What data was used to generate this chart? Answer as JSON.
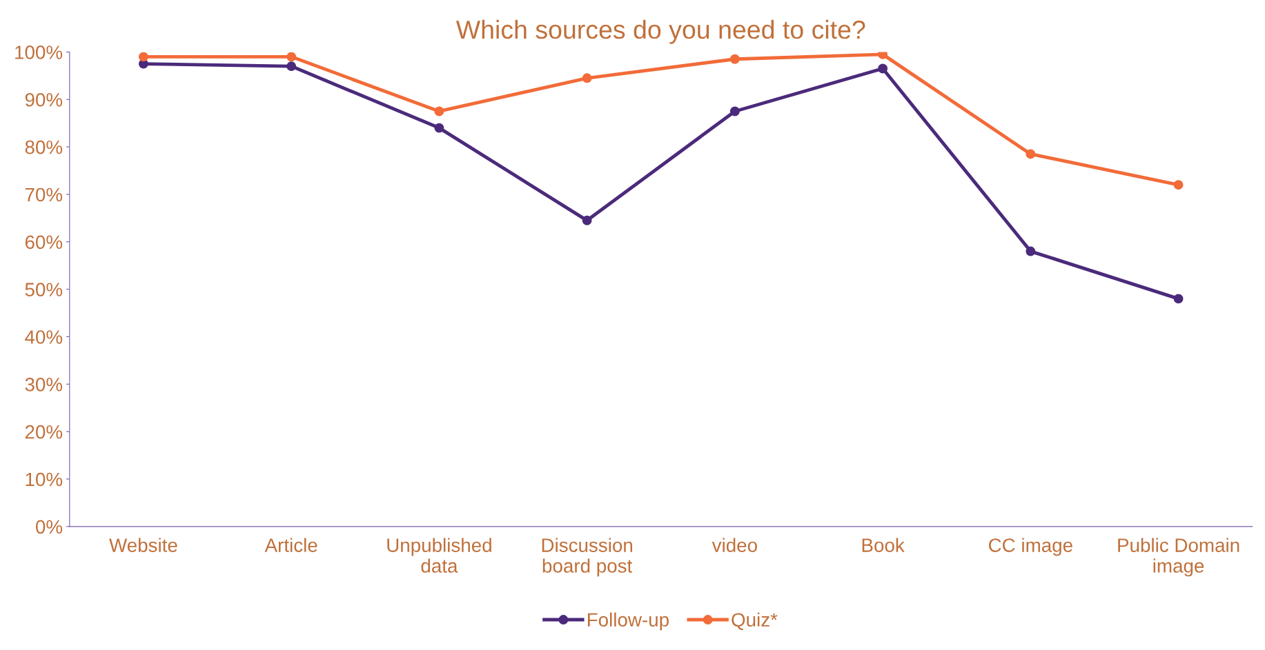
{
  "chart_data": {
    "type": "line",
    "title": "Which sources do you need to cite?",
    "categories": [
      "Website",
      "Article",
      "Unpublished\ndata",
      "Discussion\nboard post",
      "video",
      "Book",
      "CC image",
      "Public Domain\nimage"
    ],
    "series": [
      {
        "name": "Follow-up",
        "color": "#4b2a7b",
        "values": [
          97.5,
          97,
          84,
          64.5,
          87.5,
          96.5,
          58,
          48
        ]
      },
      {
        "name": "Quiz*",
        "color": "#f26b38",
        "values": [
          99,
          99,
          87.5,
          94.5,
          98.5,
          99.5,
          78.5,
          72
        ]
      }
    ],
    "ylim": [
      0,
      100
    ],
    "yticks": [
      {
        "value": 0,
        "label": "0%"
      },
      {
        "value": 10,
        "label": "10%"
      },
      {
        "value": 20,
        "label": "20%"
      },
      {
        "value": 30,
        "label": "30%"
      },
      {
        "value": 40,
        "label": "40%"
      },
      {
        "value": 50,
        "label": "50%"
      },
      {
        "value": 60,
        "label": "60%"
      },
      {
        "value": 70,
        "label": "70%"
      },
      {
        "value": 80,
        "label": "80%"
      },
      {
        "value": 90,
        "label": "90%"
      },
      {
        "value": 100,
        "label": "100%"
      }
    ],
    "grid": false,
    "legend": "bottom",
    "marker": "circle",
    "line_style": "solid"
  }
}
